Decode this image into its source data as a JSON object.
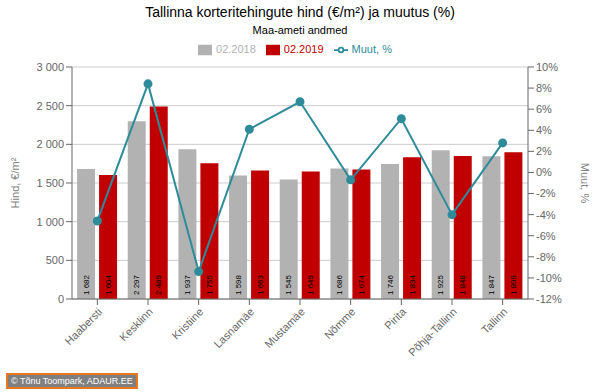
{
  "chart_data": {
    "type": "bar",
    "title": "Tallinna korteritehingute hind (€/m²) ja muutus (%)",
    "subtitle": "Maa-ameti andmed",
    "ylabel": "Hind, €/m²",
    "y2label": "Muut, %",
    "annotations": [
      "© Tõnu Toompark, ADAUR.EE"
    ],
    "categories": [
      "Haabersti",
      "Kesklinn",
      "Kristiine",
      "Lasnamäe",
      "Mustamäe",
      "Nõmme",
      "Pirita",
      "Põhja-Tallinn",
      "Tallinn"
    ],
    "series": [
      {
        "name": "02.2018",
        "type": "bar",
        "color": "#b2b2b2",
        "values": [
          1682,
          2297,
          1937,
          1598,
          1545,
          1686,
          1746,
          1925,
          1847
        ],
        "data_labels": true,
        "value_labels": [
          "1 682",
          "2 297",
          "1 937",
          "1 598",
          "1 545",
          "1 686",
          "1 746",
          "1 925",
          "1 847"
        ]
      },
      {
        "name": "02.2019",
        "type": "bar",
        "color": "#c00000",
        "values": [
          1604,
          2489,
          1755,
          1663,
          1649,
          1674,
          1834,
          1848,
          1899
        ],
        "data_labels": true,
        "value_labels": [
          "1 604",
          "2 489",
          "1 755",
          "1 663",
          "1 649",
          "1 674",
          "1 834",
          "1 848",
          "1 899"
        ]
      },
      {
        "name": "Muut, %",
        "type": "line",
        "axis": "y2",
        "color": "#2e8b9a",
        "marker": "o",
        "line_style": "solid",
        "values": [
          -4.6,
          8.4,
          -9.4,
          4.1,
          6.7,
          -0.7,
          5.1,
          -4.0,
          2.8
        ]
      }
    ],
    "ylim": [
      0,
      3000
    ],
    "yticks": [
      0,
      500,
      {
        "value": 1000,
        "label": "1 000"
      },
      {
        "value": 1500,
        "label": "1 500"
      },
      {
        "value": 2000,
        "label": "2 000"
      },
      {
        "value": 2500,
        "label": "2 500"
      },
      {
        "value": 3000,
        "label": "3 000"
      }
    ],
    "y2lim": [
      -12,
      10
    ],
    "y2ticks": [
      {
        "value": -12,
        "label": "-12%"
      },
      {
        "value": -10,
        "label": "-10%"
      },
      {
        "value": -8,
        "label": "-8%"
      },
      {
        "value": -6,
        "label": "-6%"
      },
      {
        "value": -4,
        "label": "-4%"
      },
      {
        "value": -2,
        "label": "-2%"
      },
      {
        "value": 0,
        "label": "0%"
      },
      {
        "value": 2,
        "label": "2%"
      },
      {
        "value": 4,
        "label": "4%"
      },
      {
        "value": 6,
        "label": "6%"
      },
      {
        "value": 8,
        "label": "8%"
      },
      {
        "value": 10,
        "label": "10%"
      }
    ],
    "grid": true,
    "legend": "top"
  }
}
